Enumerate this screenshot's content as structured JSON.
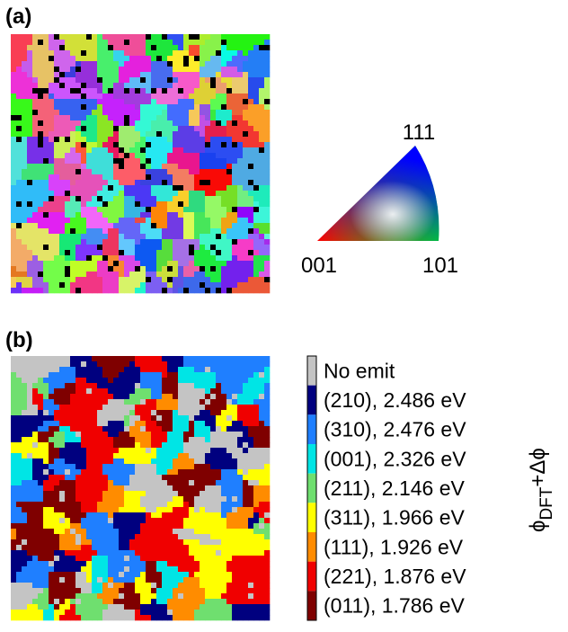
{
  "panels": [
    {
      "label": "(a)"
    },
    {
      "label": "(b)"
    }
  ],
  "ipf": {
    "labels": [
      "111",
      "001",
      "101"
    ]
  },
  "legend": {
    "entries": [
      {
        "label": "No emit",
        "color": "#c4c4c4"
      },
      {
        "label": "(210), 2.486 eV",
        "color": "#00007f"
      },
      {
        "label": "(310), 2.476 eV",
        "color": "#1f7fff"
      },
      {
        "label": "(001), 2.326 eV",
        "color": "#00e5e5"
      },
      {
        "label": "(211), 2.146 eV",
        "color": "#6fdf6f"
      },
      {
        "label": "(311), 1.966 eV",
        "color": "#ffff00"
      },
      {
        "label": "(111), 1.926 eV",
        "color": "#ff8c00"
      },
      {
        "label": "(221), 1.876 eV",
        "color": "#f00000"
      },
      {
        "label": "(011), 1.786 eV",
        "color": "#7f0000"
      }
    ],
    "axis_label": {
      "symbol": "ϕ",
      "subscript": "DFT",
      "suffix": "+Δϕ"
    }
  }
}
